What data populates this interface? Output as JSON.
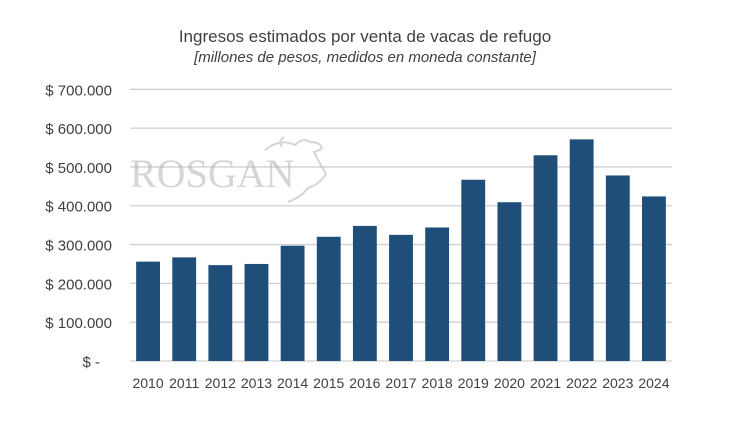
{
  "chart_data": {
    "type": "bar",
    "title": "Ingresos estimados por venta de vacas de refugo",
    "subtitle": "[millones de pesos, medidos en moneda constante]",
    "categories": [
      "2010",
      "2011",
      "2012",
      "2013",
      "2014",
      "2015",
      "2016",
      "2017",
      "2018",
      "2019",
      "2020",
      "2021",
      "2022",
      "2023",
      "2024"
    ],
    "values": [
      256000,
      267000,
      247000,
      250000,
      297000,
      320000,
      348000,
      325000,
      344000,
      467000,
      409000,
      530000,
      571000,
      478000,
      424000
    ],
    "ylim": [
      0,
      700000
    ],
    "yticks": [
      0,
      100000,
      200000,
      300000,
      400000,
      500000,
      600000,
      700000
    ],
    "ytick_labels": [
      "$ -",
      "$ 100.000",
      "$ 200.000",
      "$ 300.000",
      "$ 400.000",
      "$ 500.000",
      "$ 600.000",
      "$ 700.000"
    ],
    "grid": true,
    "bar_color": "#1F4E79",
    "watermark": "ROSGAN"
  }
}
